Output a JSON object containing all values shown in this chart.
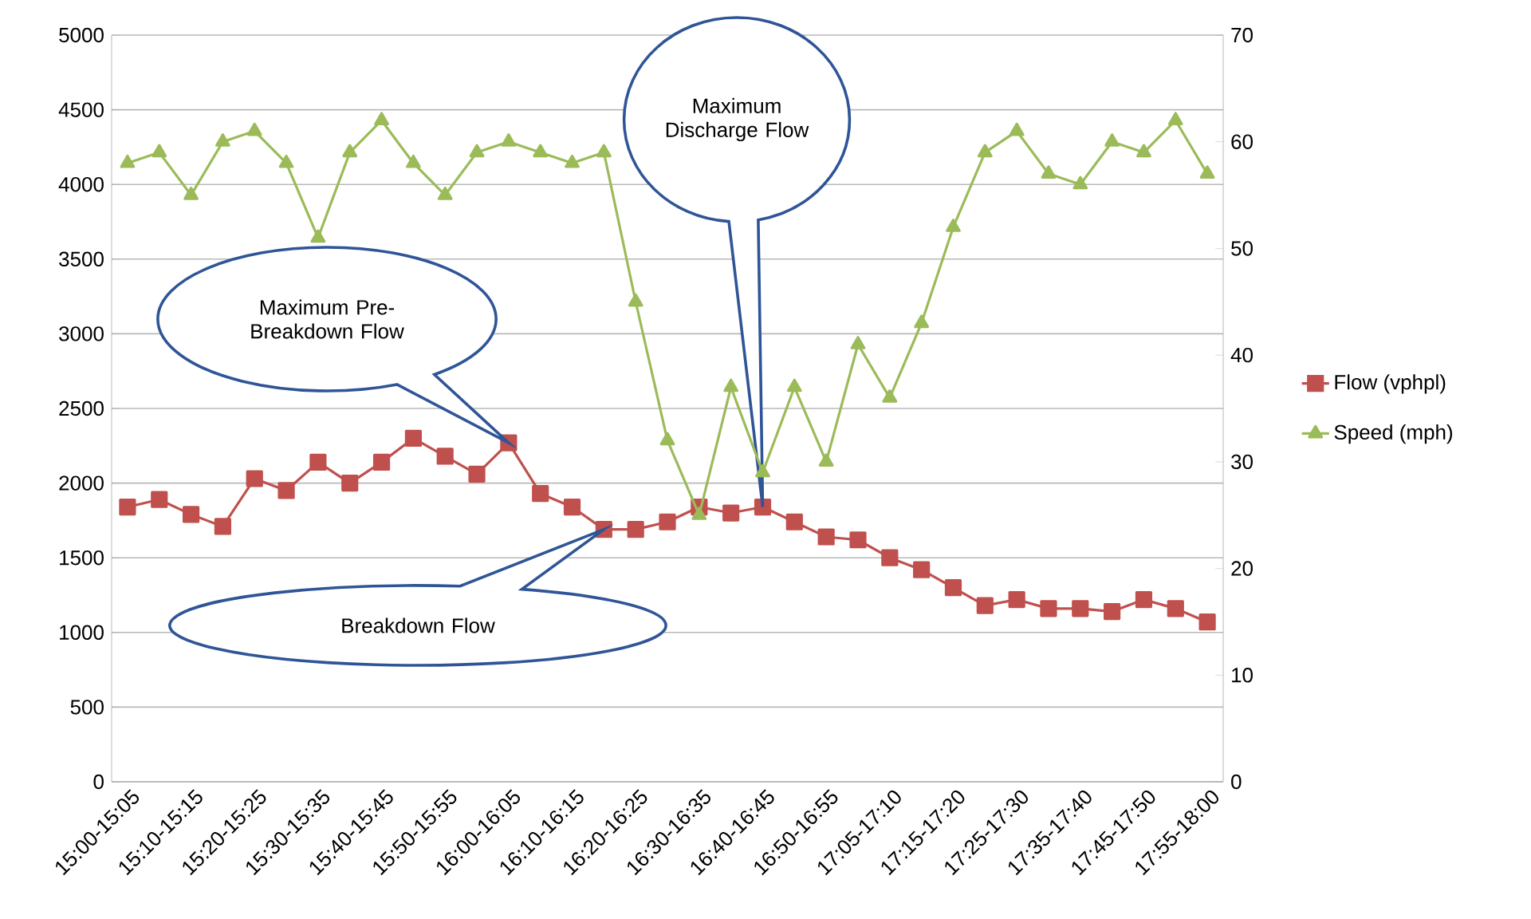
{
  "chart_data": {
    "type": "line",
    "categories": [
      "15:00-15:05",
      null,
      "15:10-15:15",
      null,
      "15:20-15:25",
      null,
      "15:30-15:35",
      null,
      "15:40-15:45",
      null,
      "15:50-15:55",
      null,
      "16:00-16:05",
      null,
      "16:10-16:15",
      null,
      "16:20-16:25",
      null,
      "16:30-16:35",
      null,
      "16:40-16:45",
      null,
      "16:50-16:55",
      null,
      "17:05-17:10",
      null,
      "17:15-17:20",
      null,
      "17:25-17:30",
      null,
      "17:35-17:40",
      null,
      "17:45-17:50",
      null,
      "17:55-18:00"
    ],
    "series": [
      {
        "name": "Flow (vphpl)",
        "color": "#c0504d",
        "marker": "square",
        "values": [
          1840,
          1890,
          1790,
          1710,
          2030,
          1950,
          2140,
          2000,
          2140,
          2300,
          2180,
          2060,
          2270,
          1930,
          1840,
          1690,
          1690,
          1740,
          1840,
          1800,
          1840,
          1740,
          1640,
          1620,
          1500,
          1420,
          1300,
          1180,
          1220,
          1160,
          1160,
          1140,
          1220,
          1160,
          1070
        ]
      },
      {
        "name": "Speed (mph)",
        "color": "#9bbb59",
        "marker": "triangle",
        "axis": "y2",
        "values": [
          58,
          59,
          55,
          60,
          61,
          58,
          51,
          59,
          62,
          58,
          55,
          59,
          60,
          59,
          58,
          59,
          45,
          32,
          25,
          37,
          29,
          37,
          30,
          41,
          36,
          43,
          52,
          59,
          61,
          57,
          56,
          60,
          59,
          62,
          57
        ]
      }
    ],
    "ylim": [
      0,
      5000
    ],
    "yticks": [
      0,
      500,
      1000,
      1500,
      2000,
      2500,
      3000,
      3500,
      4000,
      4500,
      5000
    ],
    "y2lim": [
      0,
      70
    ],
    "y2ticks": [
      0,
      10,
      20,
      30,
      40,
      50,
      60,
      70
    ],
    "grid": "y",
    "legend": "right",
    "annotations": [
      "Maximum Pre-Breakdown Flow",
      "Breakdown Flow",
      "Maximum Discharge Flow"
    ]
  }
}
